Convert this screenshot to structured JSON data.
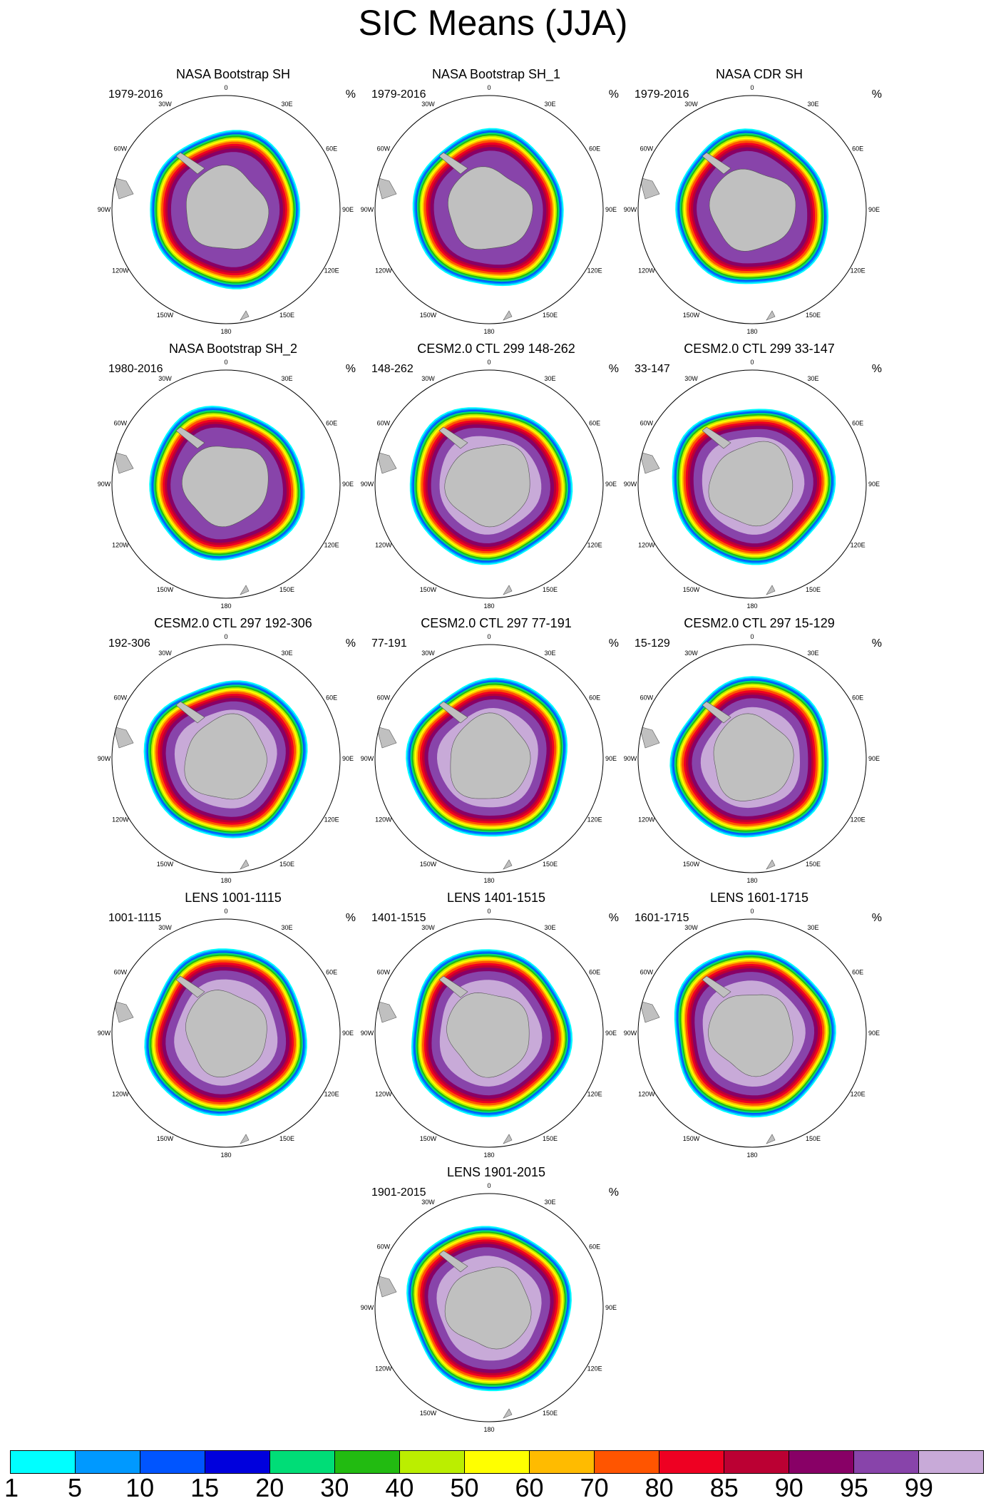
{
  "title": "SIC Means (JJA)",
  "unit": "%",
  "longitude_labels": [
    "0",
    "30E",
    "60E",
    "90E",
    "120E",
    "150E",
    "180",
    "150W",
    "120W",
    "90W",
    "60W",
    "30W"
  ],
  "panels": [
    {
      "title": "NASA Bootstrap SH",
      "left": "1979-2016",
      "right": "%",
      "kind": "obs"
    },
    {
      "title": "NASA Bootstrap SH_1",
      "left": "1979-2016",
      "right": "%",
      "kind": "obs"
    },
    {
      "title": "NASA CDR SH",
      "left": "1979-2016",
      "right": "%",
      "kind": "obs"
    },
    {
      "title": "NASA Bootstrap SH_2",
      "left": "1980-2016",
      "right": "%",
      "kind": "obs"
    },
    {
      "title": "CESM2.0 CTL 299 148-262",
      "left": "148-262",
      "right": "%",
      "kind": "model"
    },
    {
      "title": "CESM2.0 CTL 299 33-147",
      "left": "33-147",
      "right": "%",
      "kind": "model"
    },
    {
      "title": "CESM2.0 CTL 297 192-306",
      "left": "192-306",
      "right": "%",
      "kind": "model"
    },
    {
      "title": "CESM2.0 CTL 297 77-191",
      "left": "77-191",
      "right": "%",
      "kind": "model"
    },
    {
      "title": "CESM2.0 CTL 297 15-129",
      "left": "15-129",
      "right": "%",
      "kind": "model"
    },
    {
      "title": "LENS 1001-1115",
      "left": "1001-1115",
      "right": "%",
      "kind": "lens"
    },
    {
      "title": "LENS 1401-1515",
      "left": "1401-1515",
      "right": "%",
      "kind": "lens"
    },
    {
      "title": "LENS 1601-1715",
      "left": "1601-1715",
      "right": "%",
      "kind": "lens"
    },
    {
      "title": "LENS 1901-2015",
      "left": "1901-2015",
      "right": "%",
      "kind": "lens"
    }
  ],
  "colorbar": {
    "levels": [
      "1",
      "5",
      "10",
      "15",
      "20",
      "30",
      "40",
      "50",
      "60",
      "70",
      "80",
      "85",
      "90",
      "95",
      "99"
    ],
    "colors": [
      "#00ffff",
      "#0099ff",
      "#0055ff",
      "#0000dd",
      "#00dd77",
      "#22bb11",
      "#bbee00",
      "#ffff00",
      "#ffbb00",
      "#ff5500",
      "#ee0022",
      "#bb0033",
      "#880066",
      "#8844aa",
      "#c8aad8"
    ]
  },
  "chart_data": {
    "type": "heatmap",
    "title": "SIC Means (JJA)",
    "variable": "Sea ice concentration, JJA mean",
    "unit": "%",
    "projection": "south polar stereographic",
    "color_levels": [
      1,
      5,
      10,
      15,
      20,
      30,
      40,
      50,
      60,
      70,
      80,
      85,
      90,
      95,
      99
    ],
    "panels": [
      "NASA Bootstrap SH",
      "NASA Bootstrap SH_1",
      "NASA CDR SH",
      "NASA Bootstrap SH_2",
      "CESM2.0 CTL 299 148-262",
      "CESM2.0 CTL 299 33-147",
      "CESM2.0 CTL 297 192-306",
      "CESM2.0 CTL 297 77-191",
      "CESM2.0 CTL 297 15-129",
      "LENS 1001-1115",
      "LENS 1401-1515",
      "LENS 1601-1715",
      "LENS 1901-2015"
    ]
  }
}
